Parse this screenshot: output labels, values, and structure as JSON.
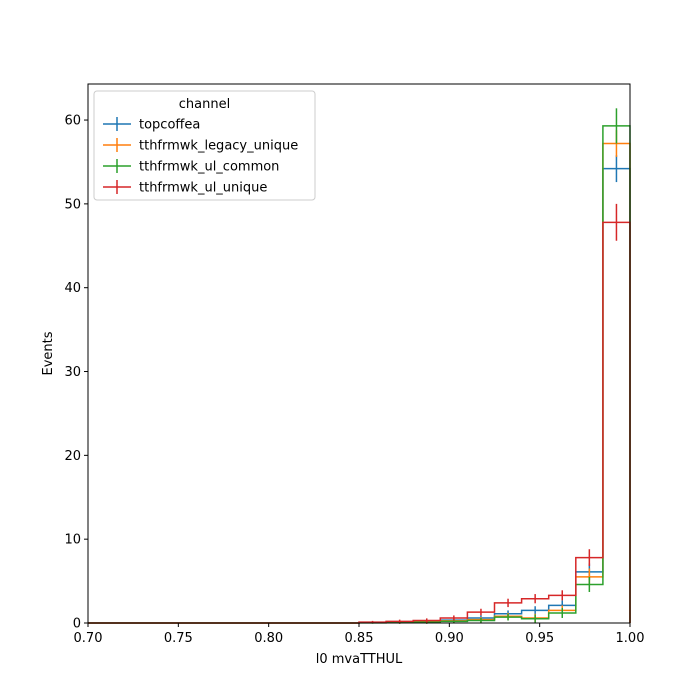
{
  "chart_data": {
    "type": "histogram-step",
    "xlabel": "l0 mvaTTHUL",
    "ylabel": "Events",
    "xlim": [
      0.7,
      1.0
    ],
    "ylim": [
      0,
      64.3
    ],
    "xticks": [
      "0.70",
      "0.75",
      "0.80",
      "0.85",
      "0.90",
      "0.95",
      "1.00"
    ],
    "xtick_values": [
      0.7,
      0.75,
      0.8,
      0.85,
      0.9,
      0.95,
      1.0
    ],
    "yticks": [
      "0",
      "10",
      "20",
      "30",
      "40",
      "50",
      "60"
    ],
    "ytick_values": [
      0,
      10,
      20,
      30,
      40,
      50,
      60
    ],
    "grid": false,
    "legend": {
      "title": "channel",
      "placement": "top-left"
    },
    "bin_edges": [
      0.7,
      0.715,
      0.73,
      0.745,
      0.76,
      0.775,
      0.79,
      0.805,
      0.82,
      0.835,
      0.85,
      0.865,
      0.88,
      0.895,
      0.91,
      0.925,
      0.94,
      0.955,
      0.97,
      0.985,
      1.0
    ],
    "series": [
      {
        "name": "topcoffea",
        "color": "#1f77b4",
        "values": [
          0,
          0,
          0,
          0,
          0,
          0,
          0,
          0,
          0,
          0,
          0.05,
          0.1,
          0.2,
          0.35,
          0.6,
          1.1,
          1.5,
          2.1,
          6.1,
          54.2
        ],
        "errors": [
          0,
          0,
          0,
          0,
          0,
          0,
          0,
          0,
          0,
          0,
          0.1,
          0.15,
          0.2,
          0.25,
          0.3,
          0.4,
          0.5,
          0.6,
          1.0,
          1.6
        ]
      },
      {
        "name": "tthfrmwk_legacy_unique",
        "color": "#ff7f0e",
        "values": [
          0,
          0,
          0,
          0,
          0,
          0,
          0,
          0,
          0,
          0,
          0.03,
          0.08,
          0.15,
          0.25,
          0.4,
          0.8,
          0.6,
          1.5,
          5.5,
          57.2
        ],
        "errors": [
          0,
          0,
          0,
          0,
          0,
          0,
          0,
          0,
          0,
          0,
          0.1,
          0.15,
          0.2,
          0.25,
          0.3,
          0.4,
          0.5,
          0.6,
          1.0,
          1.6
        ]
      },
      {
        "name": "tthfrmwk_ul_common",
        "color": "#2ca02c",
        "values": [
          0,
          0,
          0,
          0,
          0,
          0,
          0,
          0,
          0,
          0,
          0.02,
          0.05,
          0.1,
          0.2,
          0.3,
          0.7,
          0.5,
          1.2,
          4.6,
          59.3
        ],
        "errors": [
          0,
          0,
          0,
          0,
          0,
          0,
          0,
          0,
          0,
          0,
          0.1,
          0.15,
          0.2,
          0.25,
          0.3,
          0.4,
          0.5,
          0.6,
          0.9,
          2.1
        ]
      },
      {
        "name": "tthfrmwk_ul_unique",
        "color": "#d62728",
        "values": [
          0,
          0,
          0,
          0,
          0,
          0,
          0,
          0,
          0,
          0,
          0.1,
          0.2,
          0.3,
          0.6,
          1.3,
          2.4,
          2.9,
          3.3,
          7.8,
          47.8
        ],
        "errors": [
          0,
          0,
          0,
          0,
          0,
          0,
          0,
          0,
          0,
          0,
          0.15,
          0.2,
          0.25,
          0.3,
          0.4,
          0.5,
          0.55,
          0.6,
          1.0,
          2.2
        ]
      }
    ]
  }
}
